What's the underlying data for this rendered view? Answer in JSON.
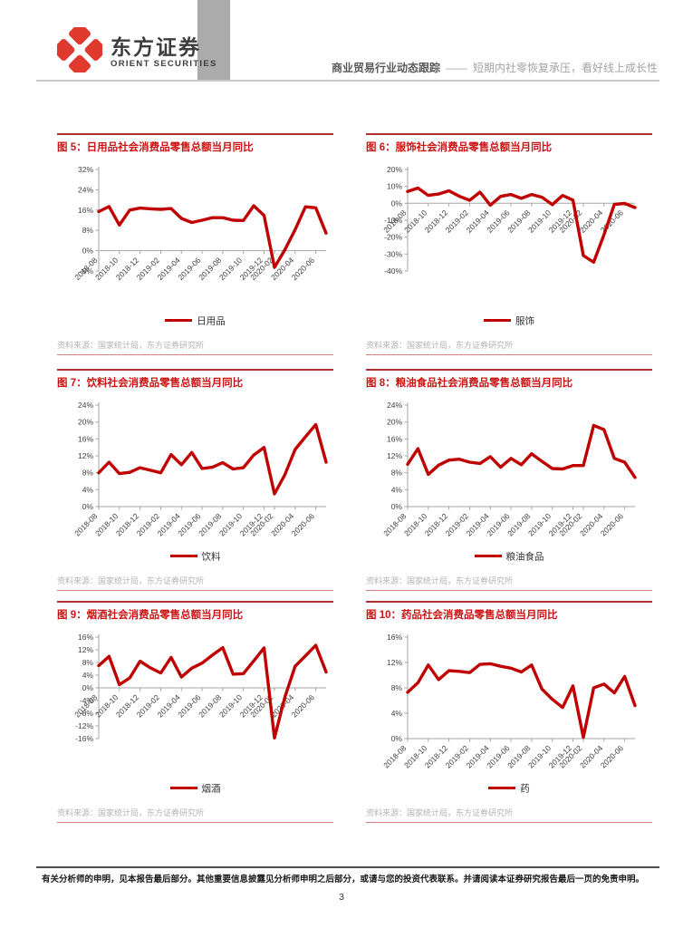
{
  "header": {
    "logo_cn": "东方证券",
    "logo_en": "ORIENT SECURITIES",
    "report_type": "商业贸易行业动态跟踪",
    "dash": "——",
    "report_subtitle": "短期内社零恢复承压，看好线上成长性"
  },
  "source_note": "资料来源：国家统计局，东方证券研究所",
  "footer": {
    "disclaimer": "有关分析师的申明，见本报告最后部分。其他重要信息披露见分析师申明之后部分，或请与您的投资代表联系。并请阅读本证券研究报告最后一页的免责申明。",
    "page_number": "3"
  },
  "colors": {
    "brand_red": "#e0392e",
    "line": "#c00000",
    "axis": "#a6a6a6",
    "title_red": "#cc1414"
  },
  "chart_data": [
    {
      "type": "line",
      "title": "图 5：日用品社会消费品零售总额当月同比",
      "legend": "日用品",
      "ylim": [
        -8,
        32
      ],
      "y_ticks": [
        "-8%",
        "0%",
        "8%",
        "16%",
        "24%",
        "32%"
      ],
      "x": [
        "2018-08",
        "2018-09",
        "2018-10",
        "2018-11",
        "2018-12",
        "2019-01",
        "2019-02",
        "2019-03",
        "2019-04",
        "2019-05",
        "2019-06",
        "2019-07",
        "2019-08",
        "2019-09",
        "2019-10",
        "2019-11",
        "2019-12",
        "2020-02",
        "2020-03",
        "2020-04",
        "2020-05",
        "2020-06",
        "2020-07"
      ],
      "x_ticks": [
        "2018-08",
        "2018-10",
        "2018-12",
        "2019-02",
        "2019-04",
        "2019-06",
        "2019-08",
        "2019-10",
        "2019-12",
        "2020-02",
        "2020-04",
        "2020-06"
      ],
      "values": [
        15.4,
        17.4,
        10.1,
        16.0,
        16.8,
        16.5,
        16.3,
        16.6,
        12.7,
        11.1,
        12.0,
        13.0,
        13.0,
        12.0,
        11.9,
        17.7,
        13.9,
        -6.6,
        0.3,
        8.3,
        17.3,
        16.9,
        6.9
      ]
    },
    {
      "type": "line",
      "title": "图 6：服饰社会消费品零售总额当月同比",
      "legend": "服饰",
      "ylim": [
        -40,
        20
      ],
      "y_ticks": [
        "-40%",
        "-30%",
        "-20%",
        "-10%",
        "0%",
        "10%",
        "20%"
      ],
      "x": [
        "2018-08",
        "2018-09",
        "2018-10",
        "2018-11",
        "2018-12",
        "2019-01",
        "2019-02",
        "2019-03",
        "2019-04",
        "2019-05",
        "2019-06",
        "2019-07",
        "2019-08",
        "2019-09",
        "2019-10",
        "2019-11",
        "2019-12",
        "2020-02",
        "2020-03",
        "2020-04",
        "2020-05",
        "2020-06",
        "2020-07"
      ],
      "x_ticks": [
        "2018-08",
        "2018-10",
        "2018-12",
        "2019-02",
        "2019-04",
        "2019-06",
        "2019-08",
        "2019-10",
        "2019-12",
        "2020-02",
        "2020-04",
        "2020-06"
      ],
      "values": [
        7.0,
        9.0,
        4.7,
        5.5,
        7.4,
        4.2,
        1.8,
        6.6,
        -1.1,
        4.1,
        5.2,
        2.9,
        5.2,
        3.6,
        -0.8,
        4.6,
        1.9,
        -30.9,
        -34.8,
        -18.5,
        -0.6,
        -0.1,
        -2.5
      ]
    },
    {
      "type": "line",
      "title": "图 7：饮料社会消费品零售总额当月同比",
      "legend": "饮料",
      "ylim": [
        0,
        24
      ],
      "y_ticks": [
        "0%",
        "4%",
        "8%",
        "12%",
        "16%",
        "20%",
        "24%"
      ],
      "x": [
        "2018-08",
        "2018-09",
        "2018-10",
        "2018-11",
        "2018-12",
        "2019-01",
        "2019-02",
        "2019-03",
        "2019-04",
        "2019-05",
        "2019-06",
        "2019-07",
        "2019-08",
        "2019-09",
        "2019-10",
        "2019-11",
        "2019-12",
        "2020-02",
        "2020-03",
        "2020-04",
        "2020-05",
        "2020-06",
        "2020-07"
      ],
      "x_ticks": [
        "2018-08",
        "2018-10",
        "2018-12",
        "2019-02",
        "2019-04",
        "2019-06",
        "2019-08",
        "2019-10",
        "2019-12",
        "2020-02",
        "2020-04",
        "2020-06"
      ],
      "values": [
        8.0,
        10.5,
        7.8,
        8.1,
        9.2,
        8.6,
        8.0,
        12.3,
        9.9,
        12.8,
        9.0,
        9.3,
        10.4,
        8.9,
        9.2,
        12.2,
        14.0,
        3.0,
        7.5,
        13.5,
        16.5,
        19.4,
        10.5
      ]
    },
    {
      "type": "line",
      "title": "图 8：粮油食品社会消费品零售总额当月同比",
      "legend": "粮油食品",
      "ylim": [
        0,
        24
      ],
      "y_ticks": [
        "0%",
        "4%",
        "8%",
        "12%",
        "16%",
        "20%",
        "24%"
      ],
      "x": [
        "2018-08",
        "2018-09",
        "2018-10",
        "2018-11",
        "2018-12",
        "2019-01",
        "2019-02",
        "2019-03",
        "2019-04",
        "2019-05",
        "2019-06",
        "2019-07",
        "2019-08",
        "2019-09",
        "2019-10",
        "2019-11",
        "2019-12",
        "2020-02",
        "2020-03",
        "2020-04",
        "2020-05",
        "2020-06",
        "2020-07"
      ],
      "x_ticks": [
        "2018-08",
        "2018-10",
        "2018-12",
        "2019-02",
        "2019-04",
        "2019-06",
        "2019-08",
        "2019-10",
        "2019-12",
        "2020-02",
        "2020-04",
        "2020-06"
      ],
      "values": [
        10.0,
        13.7,
        7.6,
        9.8,
        11.0,
        11.2,
        10.5,
        10.2,
        11.8,
        9.3,
        11.4,
        9.9,
        12.5,
        10.7,
        9.0,
        8.9,
        9.7,
        9.7,
        19.2,
        18.2,
        11.4,
        10.5,
        6.9
      ]
    },
    {
      "type": "line",
      "title": "图 9：烟酒社会消费品零售总额当月同比",
      "legend": "烟酒",
      "ylim": [
        -16,
        16
      ],
      "y_ticks": [
        "-16%",
        "-12%",
        "-8%",
        "-4%",
        "0%",
        "4%",
        "8%",
        "12%",
        "16%"
      ],
      "x": [
        "2018-08",
        "2018-09",
        "2018-10",
        "2018-11",
        "2018-12",
        "2019-01",
        "2019-02",
        "2019-03",
        "2019-04",
        "2019-05",
        "2019-06",
        "2019-07",
        "2019-08",
        "2019-09",
        "2019-10",
        "2019-11",
        "2019-12",
        "2020-02",
        "2020-03",
        "2020-04",
        "2020-05",
        "2020-06",
        "2020-07"
      ],
      "x_ticks": [
        "2018-08",
        "2018-10",
        "2018-12",
        "2019-02",
        "2019-04",
        "2019-06",
        "2019-08",
        "2019-10",
        "2019-12",
        "2020-02",
        "2020-04",
        "2020-06"
      ],
      "values": [
        7.0,
        9.9,
        1.0,
        3.1,
        8.4,
        6.3,
        4.7,
        9.6,
        3.4,
        6.2,
        7.8,
        10.3,
        12.7,
        4.3,
        4.5,
        8.5,
        12.6,
        -15.8,
        -3.0,
        6.8,
        10.1,
        13.4,
        5.0
      ]
    },
    {
      "type": "line",
      "title": "图 10：药品社会消费品零售总额当月同比",
      "legend": "药",
      "ylim": [
        0,
        16
      ],
      "y_ticks": [
        "0%",
        "4%",
        "8%",
        "12%",
        "16%"
      ],
      "x": [
        "2018-08",
        "2018-09",
        "2018-10",
        "2018-11",
        "2018-12",
        "2019-01",
        "2019-02",
        "2019-03",
        "2019-04",
        "2019-05",
        "2019-06",
        "2019-07",
        "2019-08",
        "2019-09",
        "2019-10",
        "2019-11",
        "2019-12",
        "2020-02",
        "2020-03",
        "2020-04",
        "2020-05",
        "2020-06",
        "2020-07"
      ],
      "x_ticks": [
        "2018-08",
        "2018-10",
        "2018-12",
        "2019-02",
        "2019-04",
        "2019-06",
        "2019-08",
        "2019-10",
        "2019-12",
        "2020-02",
        "2020-04",
        "2020-06"
      ],
      "values": [
        7.3,
        8.8,
        11.6,
        9.3,
        10.7,
        10.6,
        10.4,
        11.7,
        11.8,
        11.4,
        11.1,
        10.5,
        11.6,
        7.8,
        6.2,
        4.9,
        8.3,
        0.2,
        8.0,
        8.6,
        7.2,
        9.8,
        5.2
      ]
    }
  ]
}
